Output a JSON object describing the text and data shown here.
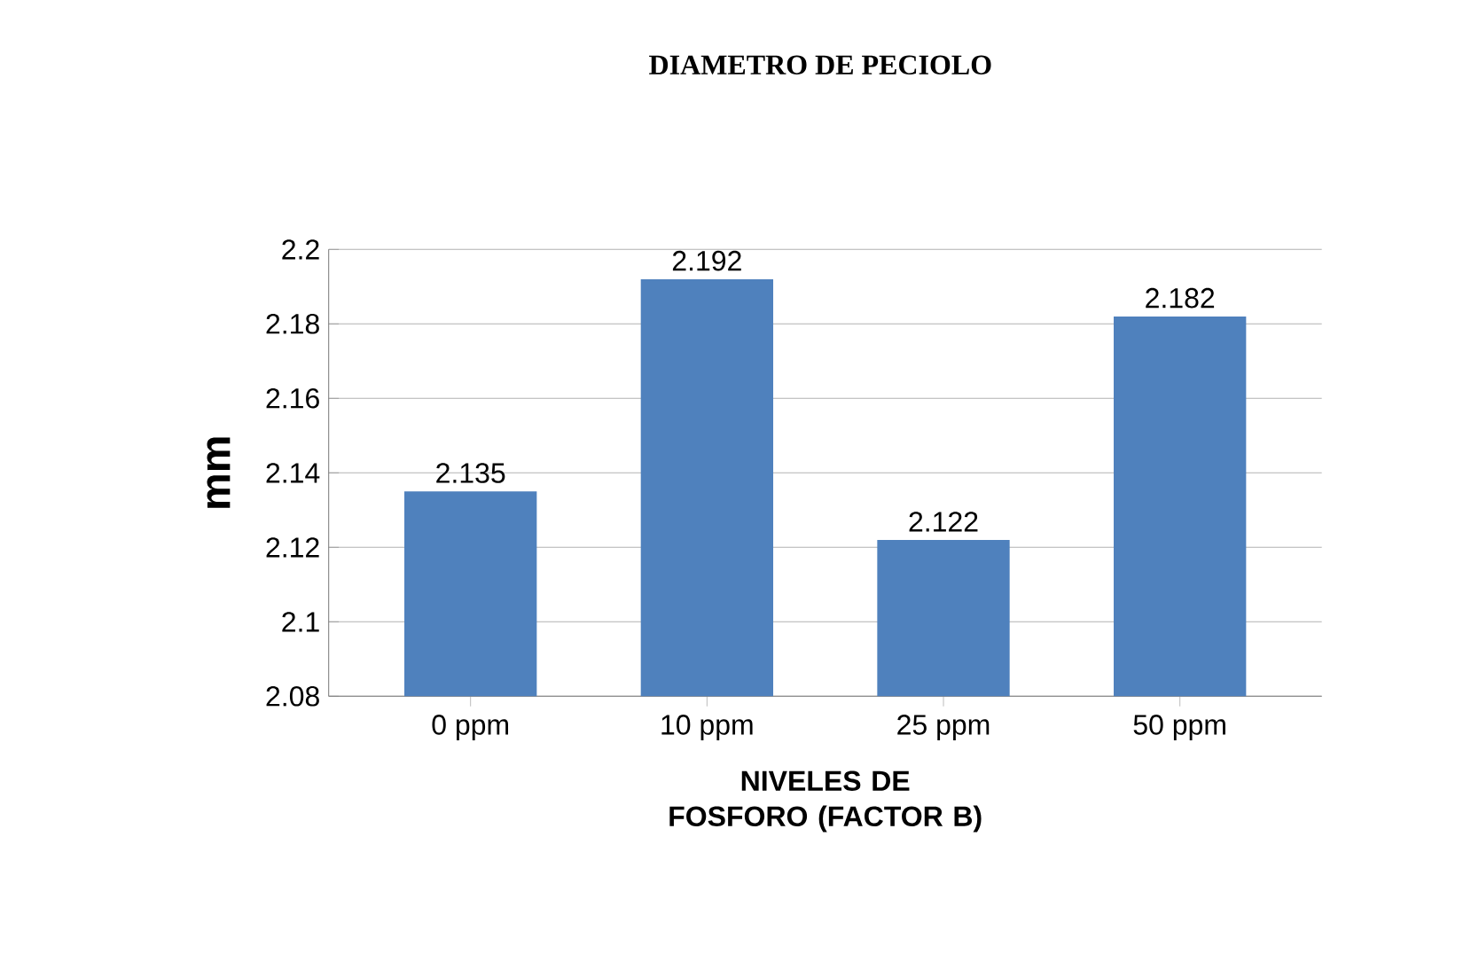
{
  "chart_data": {
    "type": "bar",
    "title": "DIAMETRO DE PECIOLO",
    "xlabel": "NIVELES DE FOSFORO (FACTOR  B)",
    "ylabel": "mm",
    "categories": [
      "0 ppm",
      "10 ppm",
      "25 ppm",
      "50 ppm"
    ],
    "values": [
      2.135,
      2.192,
      2.122,
      2.182
    ],
    "color": "#4f81bd",
    "ylim": [
      2.08,
      2.2
    ],
    "yticks": [
      2.08,
      2.1,
      2.12,
      2.14,
      2.16,
      2.18,
      2.2
    ],
    "grid": "y",
    "data_labels": true
  }
}
